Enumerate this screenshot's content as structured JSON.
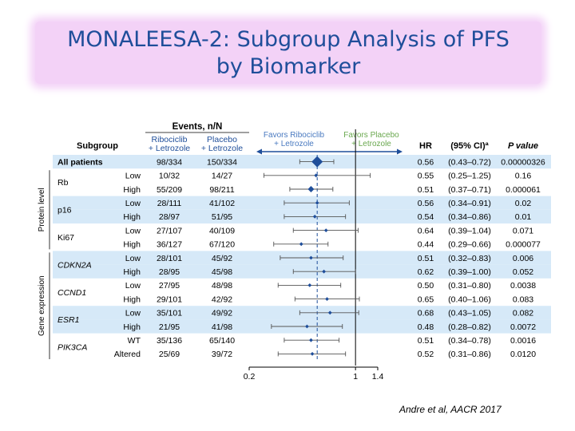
{
  "slide": {
    "title_line1": "MONALEESA-2: Subgroup Analysis of PFS",
    "title_line2": "by Biomarker",
    "citation": "Andre et al, AACR 2017"
  },
  "colors": {
    "title": "#1f4e9a",
    "band": "#d6e9f8",
    "marker": "#1f4e9a",
    "favors": "#4a7ac0",
    "favors_placebo": "#6aa84f"
  },
  "chart_data": {
    "type": "forest",
    "headers": {
      "events": "Events, n/N",
      "subgroup": "Subgroup",
      "ribo_line1": "Ribociclib",
      "ribo_line2": "+ Letrozole",
      "placebo_line1": "Placebo",
      "placebo_line2": "+ Letrozole",
      "favors_left_line1": "Favors Ribociclib",
      "favors_left_line2": "+ Letrozole",
      "favors_right_line1": "Favors Placebo",
      "favors_right_line2": "+ Letrozole",
      "hr": "HR",
      "ci": "(95% CI)ª",
      "p": "P value"
    },
    "sections": [
      "Protein level",
      "Gene expression"
    ],
    "x_axis": {
      "scale": "log",
      "range": [
        0.2,
        1.4
      ],
      "ticks": [
        "0.2",
        "1",
        "1.4"
      ],
      "reference": 1,
      "overall_hr": 0.56
    },
    "rows": [
      {
        "group": "All patients",
        "level": "",
        "ribo": "98/334",
        "placebo": "150/334",
        "hr": 0.56,
        "hr_text": "0.56",
        "ci": "(0.43–0.72)",
        "p": "0.00000326",
        "lo": 0.43,
        "hi": 0.72,
        "band": true,
        "bold": true
      },
      {
        "group": "Rb",
        "level": "Low",
        "ribo": "10/32",
        "placebo": "14/27",
        "hr": 0.55,
        "hr_text": "0.55",
        "ci": "(0.25–1.25)",
        "p": "0.16",
        "lo": 0.25,
        "hi": 1.25,
        "band": false
      },
      {
        "group": "",
        "level": "High",
        "ribo": "55/209",
        "placebo": "98/211",
        "hr": 0.51,
        "hr_text": "0.51",
        "ci": "(0.37–0.71)",
        "p": "0.000061",
        "lo": 0.37,
        "hi": 0.71,
        "band": false
      },
      {
        "group": "p16",
        "level": "Low",
        "ribo": "28/111",
        "placebo": "41/102",
        "hr": 0.56,
        "hr_text": "0.56",
        "ci": "(0.34–0.91)",
        "p": "0.02",
        "lo": 0.34,
        "hi": 0.91,
        "band": true
      },
      {
        "group": "",
        "level": "High",
        "ribo": "28/97",
        "placebo": "51/95",
        "hr": 0.54,
        "hr_text": "0.54",
        "ci": "(0.34–0.86)",
        "p": "0.01",
        "lo": 0.34,
        "hi": 0.86,
        "band": true
      },
      {
        "group": "Ki67",
        "level": "Low",
        "ribo": "27/107",
        "placebo": "40/109",
        "hr": 0.64,
        "hr_text": "0.64",
        "ci": "(0.39–1.04)",
        "p": "0.071",
        "lo": 0.39,
        "hi": 1.04,
        "band": false
      },
      {
        "group": "",
        "level": "High",
        "ribo": "36/127",
        "placebo": "67/120",
        "hr": 0.44,
        "hr_text": "0.44",
        "ci": "(0.29–0.66)",
        "p": "0.000077",
        "lo": 0.29,
        "hi": 0.66,
        "band": false
      },
      {
        "group": "CDKN2A",
        "level": "Low",
        "ribo": "28/101",
        "placebo": "45/92",
        "hr": 0.51,
        "hr_text": "0.51",
        "ci": "(0.32–0.83)",
        "p": "0.006",
        "lo": 0.32,
        "hi": 0.83,
        "band": true,
        "italic": true
      },
      {
        "group": "",
        "level": "High",
        "ribo": "28/95",
        "placebo": "45/98",
        "hr": 0.62,
        "hr_text": "0.62",
        "ci": "(0.39–1.00)",
        "p": "0.052",
        "lo": 0.39,
        "hi": 1.0,
        "band": true
      },
      {
        "group": "CCND1",
        "level": "Low",
        "ribo": "27/95",
        "placebo": "48/98",
        "hr": 0.5,
        "hr_text": "0.50",
        "ci": "(0.31–0.80)",
        "p": "0.0038",
        "lo": 0.31,
        "hi": 0.8,
        "band": false,
        "italic": true
      },
      {
        "group": "",
        "level": "High",
        "ribo": "29/101",
        "placebo": "42/92",
        "hr": 0.65,
        "hr_text": "0.65",
        "ci": "(0.40–1.06)",
        "p": "0.083",
        "lo": 0.4,
        "hi": 1.06,
        "band": false
      },
      {
        "group": "ESR1",
        "level": "Low",
        "ribo": "35/101",
        "placebo": "49/92",
        "hr": 0.68,
        "hr_text": "0.68",
        "ci": "(0.43–1.05)",
        "p": "0.082",
        "lo": 0.43,
        "hi": 1.05,
        "band": true,
        "italic": true
      },
      {
        "group": "",
        "level": "High",
        "ribo": "21/95",
        "placebo": "41/98",
        "hr": 0.48,
        "hr_text": "0.48",
        "ci": "(0.28–0.82)",
        "p": "0.0072",
        "lo": 0.28,
        "hi": 0.82,
        "band": true
      },
      {
        "group": "PIK3CA",
        "level": "WT",
        "ribo": "35/136",
        "placebo": "65/140",
        "hr": 0.51,
        "hr_text": "0.51",
        "ci": "(0.34–0.78)",
        "p": "0.0016",
        "lo": 0.34,
        "hi": 0.78,
        "band": false,
        "italic": true
      },
      {
        "group": "",
        "level": "Altered",
        "ribo": "25/69",
        "placebo": "39/72",
        "hr": 0.52,
        "hr_text": "0.52",
        "ci": "(0.31–0.86)",
        "p": "0.0120",
        "lo": 0.31,
        "hi": 0.86,
        "band": false
      }
    ]
  }
}
